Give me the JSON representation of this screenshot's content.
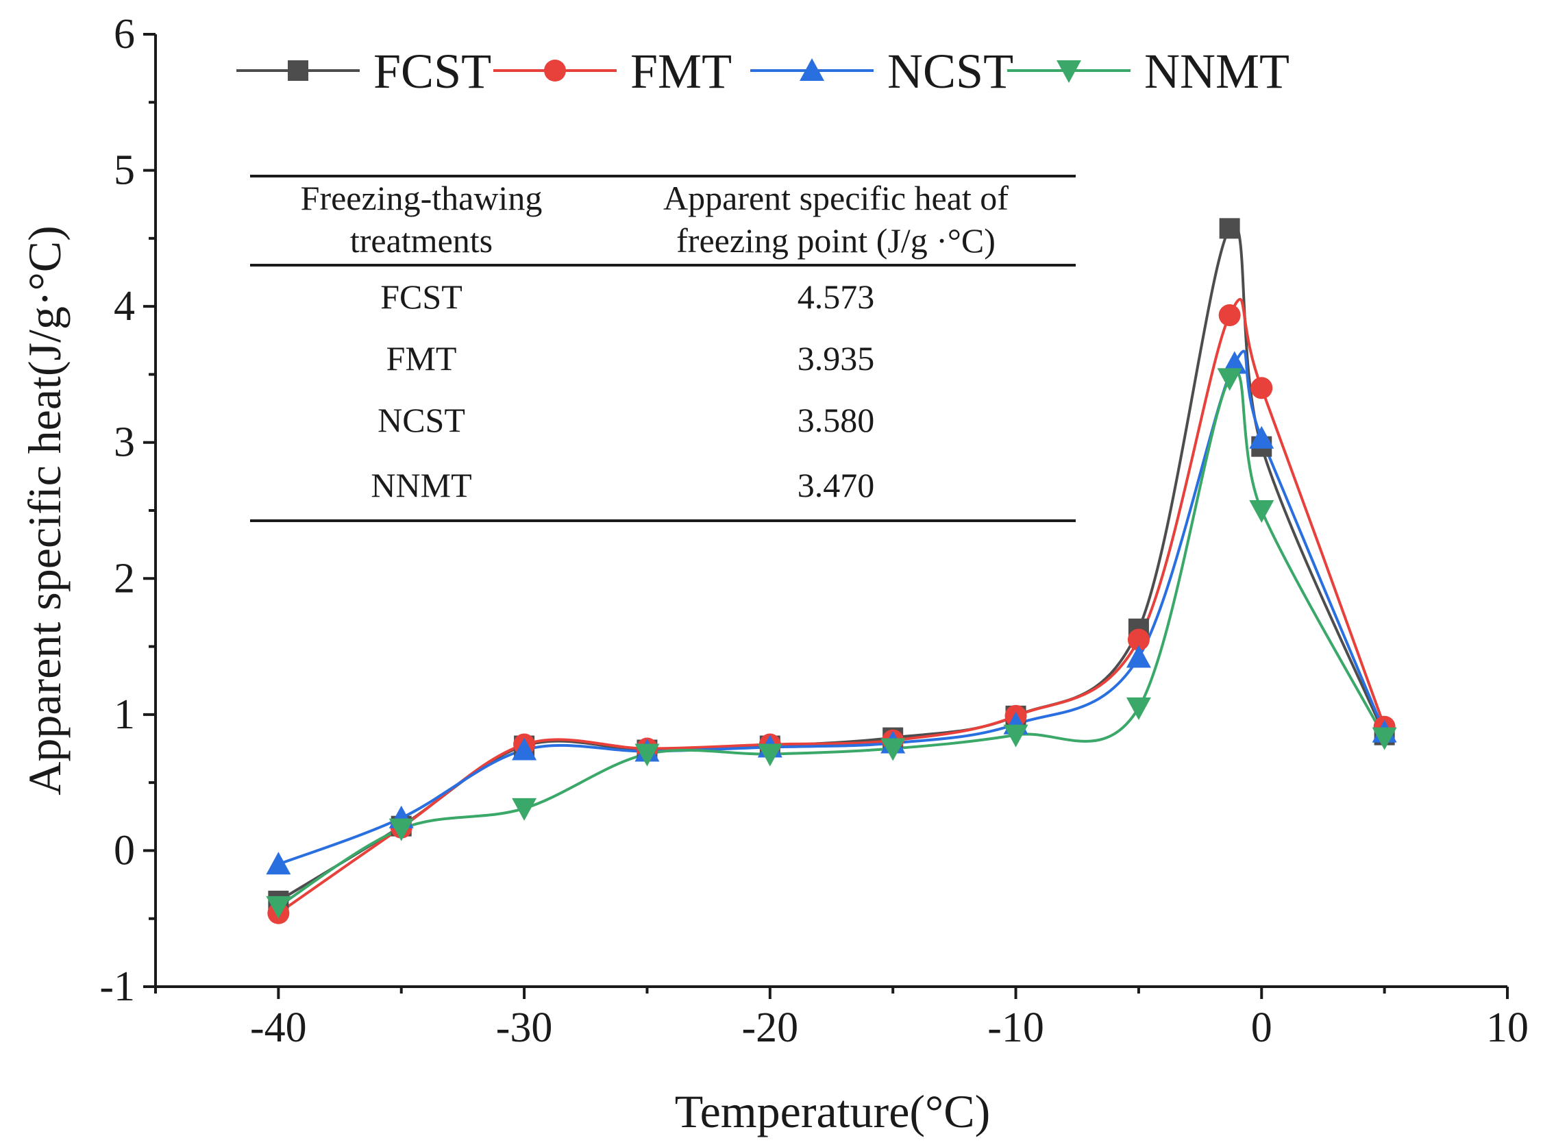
{
  "chart_data": {
    "type": "line",
    "title": "",
    "xlabel": "Temperature(°C)",
    "ylabel": "Apparent specific heat(J/g·°C)",
    "xlim": [
      -45,
      10
    ],
    "ylim": [
      -1,
      6
    ],
    "grid": false,
    "legend_position": "top",
    "x_ticks": [
      -40,
      -30,
      -20,
      -10,
      0,
      10
    ],
    "x_tick_labels": [
      "-40",
      "-30",
      "-20",
      "-10",
      "0",
      "10"
    ],
    "y_ticks": [
      -1,
      0,
      1,
      2,
      3,
      4,
      5,
      6
    ],
    "y_tick_labels": [
      "-1",
      "0",
      "1",
      "2",
      "3",
      "4",
      "5",
      "6"
    ],
    "series": [
      {
        "name": "FCST",
        "color": "#4d4d4d",
        "marker": "square",
        "x": [
          -40,
          -35,
          -30,
          -25,
          -20,
          -15,
          -10,
          -5,
          -1.3,
          0,
          5
        ],
        "y": [
          -0.37,
          0.18,
          0.77,
          0.74,
          0.77,
          0.83,
          0.99,
          1.63,
          4.573,
          2.97,
          0.85
        ]
      },
      {
        "name": "FMT",
        "color": "#e8403a",
        "marker": "circle",
        "x": [
          -40,
          -35,
          -30,
          -25,
          -20,
          -15,
          -10,
          -5,
          -1.3,
          0,
          5
        ],
        "y": [
          -0.46,
          0.17,
          0.78,
          0.75,
          0.78,
          0.81,
          0.99,
          1.55,
          3.935,
          3.4,
          0.91
        ]
      },
      {
        "name": "NCST",
        "color": "#2a6fe0",
        "marker": "triangle-up",
        "x": [
          -40,
          -35,
          -30,
          -25,
          -20,
          -15,
          -10,
          -5,
          -1.1,
          0,
          5
        ],
        "y": [
          -0.1,
          0.24,
          0.74,
          0.73,
          0.76,
          0.79,
          0.93,
          1.42,
          3.58,
          3.03,
          0.87
        ]
      },
      {
        "name": "NNMT",
        "color": "#3aa868",
        "marker": "triangle-down",
        "x": [
          -40,
          -35,
          -30,
          -25,
          -20,
          -15,
          -10,
          -5,
          -1.3,
          0,
          5
        ],
        "y": [
          -0.41,
          0.16,
          0.31,
          0.71,
          0.71,
          0.75,
          0.85,
          1.05,
          3.47,
          2.5,
          0.83
        ]
      }
    ],
    "inset_table": {
      "header_col1_line1": "Freezing-thawing",
      "header_col1_line2": "treatments",
      "header_col2_line1": "Apparent specific heat of",
      "header_col2_line2": "freezing point (J/g ·°C)",
      "rows": [
        {
          "treatment": "FCST",
          "value": "4.573"
        },
        {
          "treatment": "FMT",
          "value": "3.935"
        },
        {
          "treatment": "NCST",
          "value": "3.580"
        },
        {
          "treatment": "NNMT",
          "value": "3.470"
        }
      ]
    }
  }
}
